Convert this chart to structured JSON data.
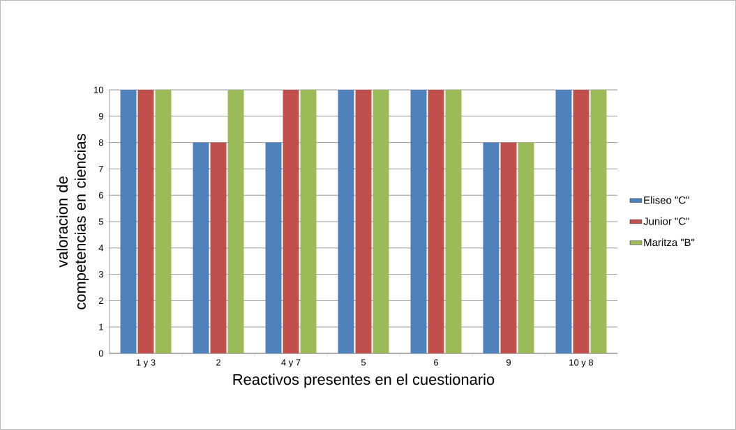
{
  "chart_data": {
    "type": "bar",
    "xlabel": "Reactivos presentes en el cuestionario",
    "ylabel": "valoracion de competencias en ciencias",
    "categories": [
      "1 y 3",
      "2",
      "4 y 7",
      "5",
      "6",
      "9",
      "10 y 8"
    ],
    "series": [
      {
        "name": "Eliseo \"C\"",
        "color": "#4f81bd",
        "values": [
          10,
          8,
          8,
          10,
          10,
          8,
          10
        ]
      },
      {
        "name": "Junior \"C\"",
        "color": "#c0504d",
        "values": [
          10,
          8,
          10,
          10,
          10,
          8,
          10
        ]
      },
      {
        "name": "Maritza \"B\"",
        "color": "#9bbb59",
        "values": [
          10,
          10,
          10,
          10,
          10,
          8,
          10
        ]
      }
    ],
    "ylim": [
      0,
      10
    ],
    "yticks": [
      0,
      1,
      2,
      3,
      4,
      5,
      6,
      7,
      8,
      9,
      10
    ],
    "grid": "y",
    "legend": "right"
  }
}
